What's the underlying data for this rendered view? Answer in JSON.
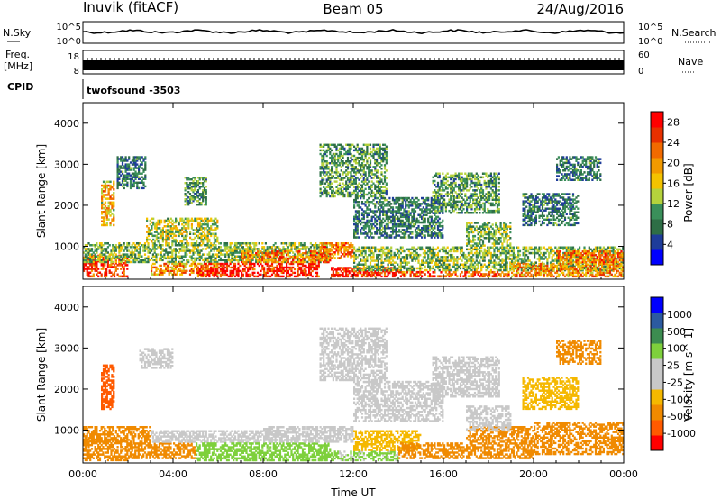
{
  "header": {
    "station": "Inuvik (fitACF)",
    "beam": "Beam 05",
    "date": "24/Aug/2016"
  },
  "summary_panels": {
    "nsky_label": "N.Sky",
    "freq_label_1": "Freq.",
    "freq_label_2": "[MHz]",
    "cpid_label": "CPID",
    "nsearch_label": "N.Search",
    "nave_label": "Nave",
    "noise_ticks_left": [
      "10^5",
      "10^0"
    ],
    "noise_ticks_right": [
      "10^5",
      "10^0"
    ],
    "freq_ticks": [
      "18",
      "8"
    ],
    "nave_ticks": [
      "60",
      "0"
    ],
    "cpid_text": "twofsound -3503"
  },
  "colors": {
    "power_scale": [
      "#0000ff",
      "#1e3c9a",
      "#2e6e46",
      "#3a8f5a",
      "#b5d23c",
      "#f4c300",
      "#f29a00",
      "#f26a00",
      "#e83000",
      "#ff0000"
    ],
    "velocity_scale": [
      "#ff0000",
      "#ff5a00",
      "#f08a00",
      "#f5b800",
      "#c8c8c8",
      "#c8c8c8",
      "#7ed03c",
      "#3c8c50",
      "#2c5aa0",
      "#0000ff"
    ],
    "noise_trace": "#000000"
  },
  "chart_data": [
    {
      "type": "heatmap",
      "name": "power",
      "xlabel": "",
      "ylabel": "Slant Range [km]",
      "x_range_hours": [
        0,
        24
      ],
      "ylim": [
        200,
        4500
      ],
      "x_ticks": [
        "00:00",
        "04:00",
        "08:00",
        "12:00",
        "16:00",
        "20:00",
        "00:00"
      ],
      "y_ticks": [
        1000,
        2000,
        3000,
        4000
      ],
      "colorbar": {
        "label": "Power [dB]",
        "ticks": [
          4,
          8,
          12,
          16,
          20,
          24,
          28
        ],
        "range": [
          0,
          30
        ]
      },
      "regions": [
        {
          "t": [
            0.0,
            2.0
          ],
          "r": [
            250,
            800
          ],
          "value": 26
        },
        {
          "t": [
            0.0,
            11.0
          ],
          "r": [
            600,
            1100
          ],
          "value": 12
        },
        {
          "t": [
            3.0,
            6.0
          ],
          "r": [
            300,
            600
          ],
          "value": 20
        },
        {
          "t": [
            5.0,
            10.5
          ],
          "r": [
            250,
            600
          ],
          "value": 28
        },
        {
          "t": [
            7.0,
            11.0
          ],
          "r": [
            600,
            900
          ],
          "value": 22
        },
        {
          "t": [
            10.5,
            12.0
          ],
          "r": [
            700,
            1100
          ],
          "value": 22
        },
        {
          "t": [
            11.0,
            14.0
          ],
          "r": [
            250,
            500
          ],
          "value": 27
        },
        {
          "t": [
            12.0,
            24.0
          ],
          "r": [
            400,
            1000
          ],
          "value": 12
        },
        {
          "t": [
            14.0,
            19.0
          ],
          "r": [
            250,
            400
          ],
          "value": 24
        },
        {
          "t": [
            19.0,
            24.0
          ],
          "r": [
            250,
            600
          ],
          "value": 20
        },
        {
          "t": [
            21.0,
            24.0
          ],
          "r": [
            600,
            900
          ],
          "value": 22
        },
        {
          "t": [
            0.8,
            1.4
          ],
          "r": [
            1500,
            2600
          ],
          "value": 18
        },
        {
          "t": [
            1.5,
            2.8
          ],
          "r": [
            2400,
            3200
          ],
          "value": 8
        },
        {
          "t": [
            2.8,
            6.0
          ],
          "r": [
            1100,
            1700
          ],
          "value": 14
        },
        {
          "t": [
            4.5,
            5.5
          ],
          "r": [
            2000,
            2700
          ],
          "value": 10
        },
        {
          "t": [
            10.5,
            13.5
          ],
          "r": [
            2200,
            3500
          ],
          "value": 10
        },
        {
          "t": [
            12.0,
            16.0
          ],
          "r": [
            1200,
            2200
          ],
          "value": 8
        },
        {
          "t": [
            15.5,
            18.5
          ],
          "r": [
            1800,
            2800
          ],
          "value": 10
        },
        {
          "t": [
            17.0,
            19.0
          ],
          "r": [
            1000,
            1600
          ],
          "value": 12
        },
        {
          "t": [
            19.5,
            22.0
          ],
          "r": [
            1500,
            2300
          ],
          "value": 8
        },
        {
          "t": [
            21.0,
            23.0
          ],
          "r": [
            2600,
            3200
          ],
          "value": 8
        }
      ]
    },
    {
      "type": "heatmap",
      "name": "velocity",
      "xlabel": "Time UT",
      "ylabel": "Slant Range [km]",
      "x_range_hours": [
        0,
        24
      ],
      "ylim": [
        200,
        4500
      ],
      "x_ticks": [
        "00:00",
        "04:00",
        "08:00",
        "12:00",
        "16:00",
        "20:00",
        "00:00"
      ],
      "y_ticks": [
        1000,
        2000,
        3000,
        4000
      ],
      "colorbar": {
        "label": "Velocity [m s^-1]",
        "ticks": [
          "1000",
          "500",
          "100",
          "25",
          "-25",
          "-100",
          "-500",
          "-1000"
        ]
      },
      "regions": [
        {
          "t": [
            0.0,
            2.0
          ],
          "r": [
            250,
            800
          ],
          "value": -300
        },
        {
          "t": [
            0.0,
            3.0
          ],
          "r": [
            700,
            1100
          ],
          "value": -150
        },
        {
          "t": [
            2.0,
            5.0
          ],
          "r": [
            300,
            700
          ],
          "value": -200
        },
        {
          "t": [
            3.0,
            9.0
          ],
          "r": [
            700,
            1000
          ],
          "value": 0
        },
        {
          "t": [
            5.0,
            11.0
          ],
          "r": [
            250,
            700
          ],
          "value": 50
        },
        {
          "t": [
            8.0,
            12.0
          ],
          "r": [
            700,
            1100
          ],
          "value": 0
        },
        {
          "t": [
            11.0,
            14.0
          ],
          "r": [
            250,
            500
          ],
          "value": 30
        },
        {
          "t": [
            12.0,
            15.0
          ],
          "r": [
            500,
            1000
          ],
          "value": -80
        },
        {
          "t": [
            14.0,
            20.0
          ],
          "r": [
            300,
            700
          ],
          "value": -300
        },
        {
          "t": [
            17.0,
            20.0
          ],
          "r": [
            700,
            1100
          ],
          "value": -200
        },
        {
          "t": [
            20.0,
            24.0
          ],
          "r": [
            400,
            1200
          ],
          "value": -350
        },
        {
          "t": [
            0.8,
            1.4
          ],
          "r": [
            1500,
            2600
          ],
          "value": -700
        },
        {
          "t": [
            2.5,
            4.0
          ],
          "r": [
            2500,
            3000
          ],
          "value": 0
        },
        {
          "t": [
            10.5,
            13.5
          ],
          "r": [
            2200,
            3500
          ],
          "value": 0
        },
        {
          "t": [
            12.0,
            16.0
          ],
          "r": [
            1200,
            2200
          ],
          "value": 0
        },
        {
          "t": [
            15.5,
            18.5
          ],
          "r": [
            1800,
            2800
          ],
          "value": 0
        },
        {
          "t": [
            17.0,
            19.0
          ],
          "r": [
            1000,
            1600
          ],
          "value": 0
        },
        {
          "t": [
            19.5,
            22.0
          ],
          "r": [
            1500,
            2300
          ],
          "value": -80
        },
        {
          "t": [
            21.0,
            23.0
          ],
          "r": [
            2600,
            3200
          ],
          "value": -200
        }
      ]
    }
  ]
}
